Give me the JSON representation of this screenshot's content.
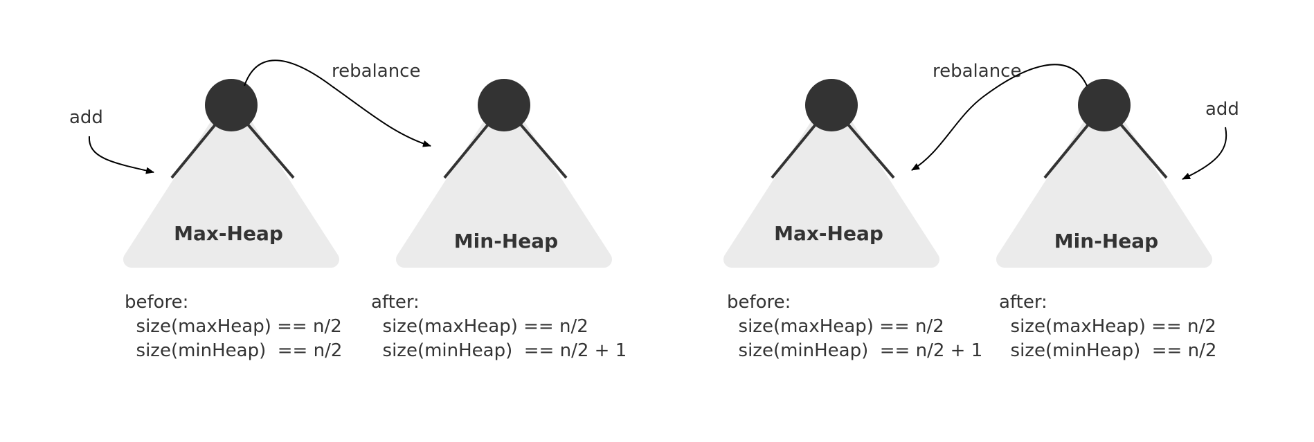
{
  "colors": {
    "node": "#333333",
    "heap_fill": "#ebebeb",
    "text": "#333333",
    "arrow": "#000000",
    "background": "#ffffff"
  },
  "left_scenario": {
    "add_label": "add",
    "rebalance_label": "rebalance",
    "max_heap": {
      "title": "Max-Heap",
      "notes": [
        "before:",
        "  size(maxHeap) == n/2",
        "  size(minHeap)  == n/2"
      ]
    },
    "min_heap": {
      "title": "Min-Heap",
      "notes": [
        "after:",
        "  size(maxHeap) == n/2",
        "  size(minHeap)  == n/2 + 1"
      ]
    }
  },
  "right_scenario": {
    "add_label": "add",
    "rebalance_label": "rebalance",
    "max_heap": {
      "title": "Max-Heap",
      "notes": [
        "before:",
        "  size(maxHeap) == n/2",
        "  size(minHeap)  == n/2 + 1"
      ]
    },
    "min_heap": {
      "title": "Min-Heap",
      "notes": [
        "after:",
        "  size(maxHeap) == n/2",
        "  size(minHeap)  == n/2"
      ]
    }
  }
}
